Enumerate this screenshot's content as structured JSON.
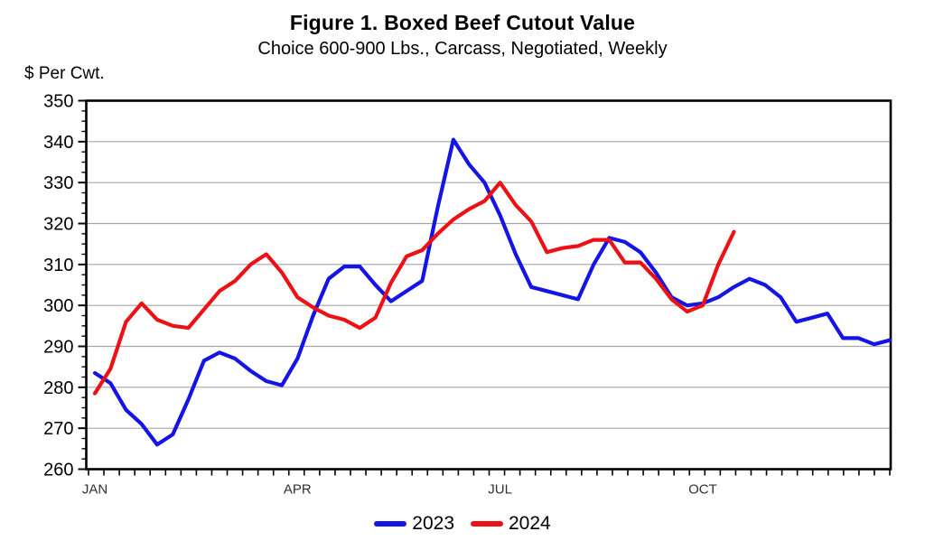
{
  "chart_data": {
    "type": "line",
    "title": "Figure 1. Boxed Beef Cutout Value",
    "subtitle": "Choice 600-900 Lbs., Carcass, Negotiated, Weekly",
    "y_axis_title": "$ Per Cwt.",
    "ylim": [
      260,
      350
    ],
    "ytick_step": 10,
    "y_minor_step": 2.5,
    "y_tick_labels": [
      "260",
      "270",
      "280",
      "290",
      "300",
      "310",
      "320",
      "330",
      "340",
      "350"
    ],
    "x_unit": "week",
    "x_weeks": 52,
    "x_tick_labels": [
      {
        "label": "JAN",
        "week": 1
      },
      {
        "label": "APR",
        "week": 14
      },
      {
        "label": "JUL",
        "week": 27
      },
      {
        "label": "OCT",
        "week": 40
      }
    ],
    "grid": "horizontal-major",
    "legend_position": "bottom-center",
    "series": [
      {
        "name": "2023",
        "color": "#1414e6",
        "values": [
          283.5,
          281,
          274.5,
          271,
          266,
          268.5,
          277,
          286.5,
          288.5,
          287,
          284,
          281.5,
          280.5,
          287,
          297.5,
          306.5,
          309.5,
          309.5,
          305,
          301,
          303.5,
          306,
          324,
          340.5,
          334.5,
          330,
          322,
          312.5,
          304.5,
          303.5,
          302.5,
          301.5,
          310,
          316.5,
          315.5,
          313,
          308,
          302,
          300,
          300.5,
          302,
          304.5,
          306.5,
          305,
          302,
          296,
          297,
          298,
          292,
          292,
          290.5,
          291.5
        ]
      },
      {
        "name": "2024",
        "color": "#ec1115",
        "values": [
          278.5,
          284.5,
          296,
          300.5,
          296.5,
          295,
          294.5,
          299,
          303.5,
          306,
          310,
          312.5,
          308,
          302,
          299.5,
          297.5,
          296.5,
          294.5,
          297,
          305.5,
          312,
          313.5,
          317.5,
          321,
          323.5,
          325.5,
          330,
          324.5,
          320.5,
          313,
          314,
          314.5,
          316,
          316,
          310.5,
          310.5,
          306.5,
          301.5,
          298.5,
          300,
          310,
          318
        ]
      }
    ]
  }
}
